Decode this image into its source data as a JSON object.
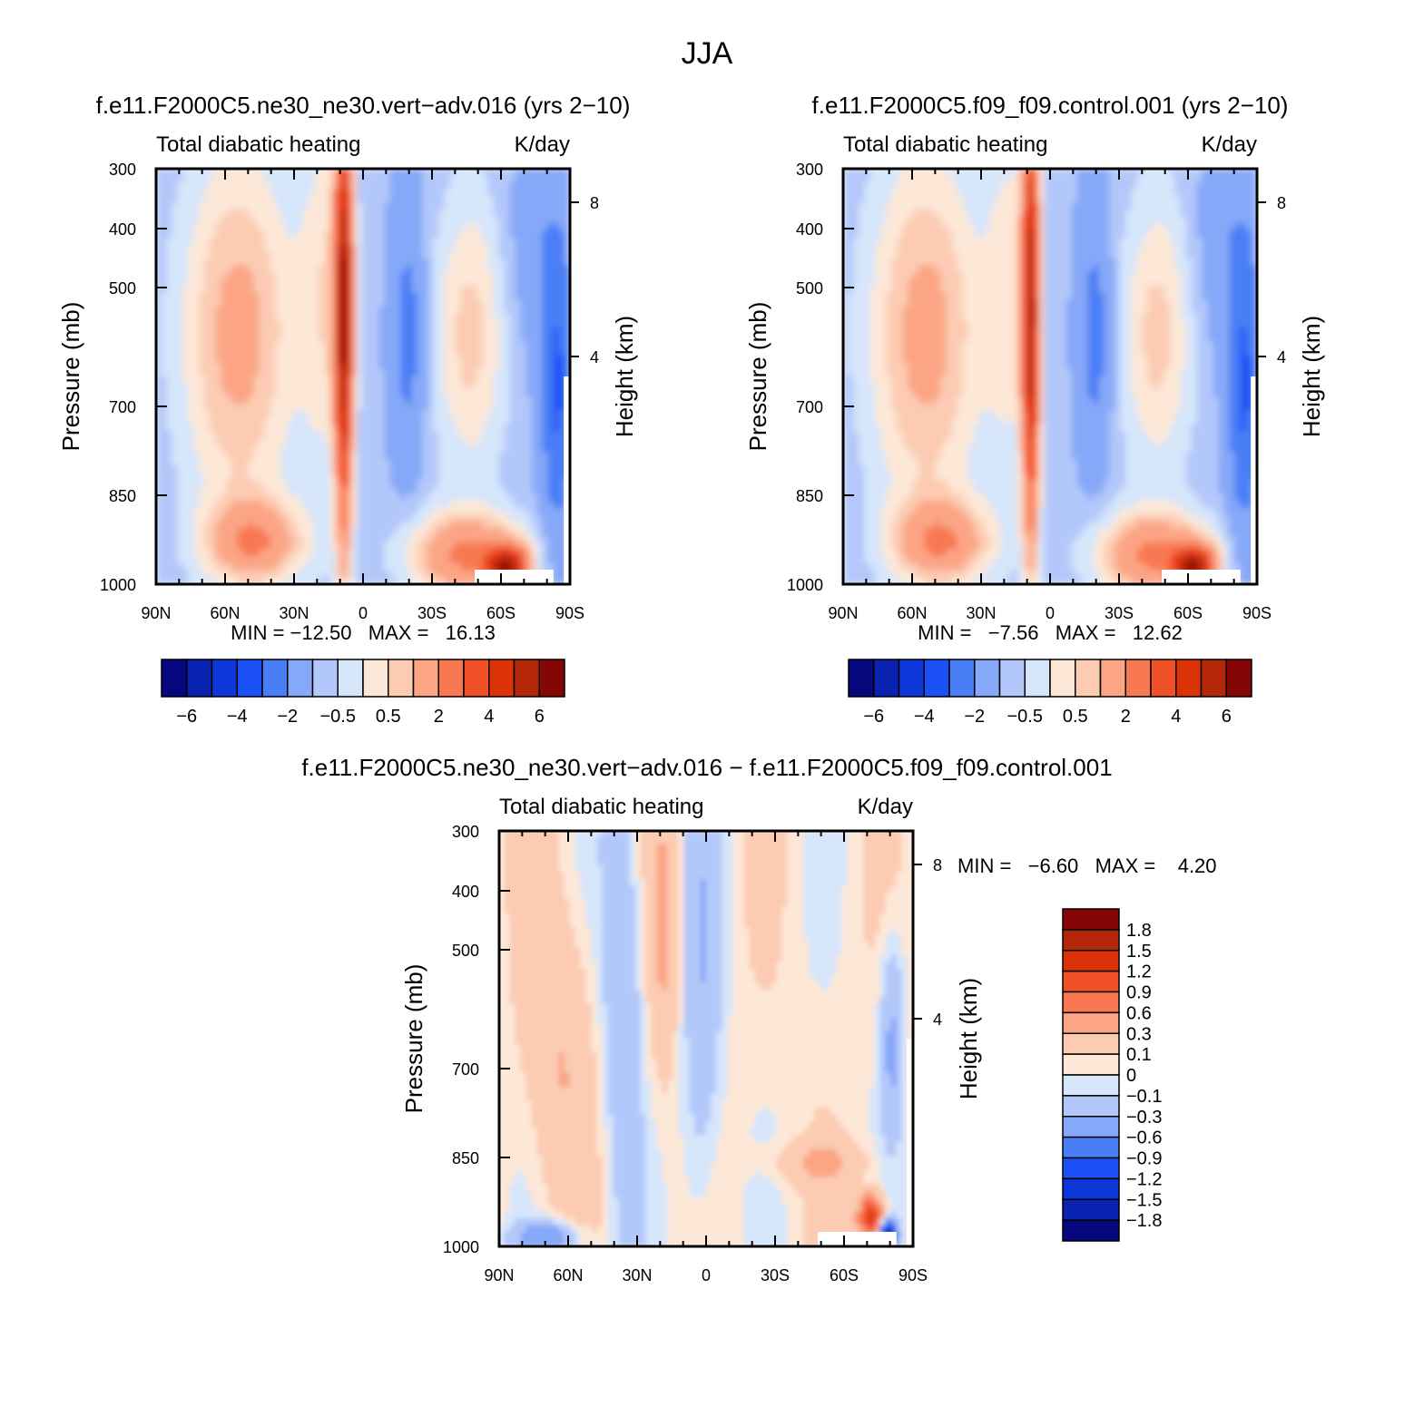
{
  "figure": {
    "title": "JJA"
  },
  "colors": {
    "main_scale": [
      "#08087e",
      "#0a22b0",
      "#0d37d9",
      "#1c51f5",
      "#4a7ef7",
      "#86a8f8",
      "#b3c8fa",
      "#d6e6fb",
      "#fde7d6",
      "#fccbb2",
      "#fba585",
      "#f87851",
      "#f05026",
      "#db3208",
      "#b32608",
      "#860505"
    ],
    "diff_scale": [
      "#08087e",
      "#0a22b0",
      "#0d37d9",
      "#1c51f5",
      "#4a7ef7",
      "#86a8f8",
      "#b3c8fa",
      "#d6e6fb",
      "#fde7d6",
      "#fccbb2",
      "#fba585",
      "#f87851",
      "#f05026",
      "#db3208",
      "#b32608",
      "#860505"
    ]
  },
  "chart_data": [
    {
      "type": "heatmap",
      "title": "f.e11.F2000C5.ne30_ne30.vert−adv.016 (yrs 2−10)",
      "subtitle_left": "Total diabatic heating",
      "subtitle_right": "K/day",
      "ylabel": "Pressure (mb)",
      "ylabel_right": "Height (km)",
      "x_ticks": [
        "90N",
        "60N",
        "30N",
        "0",
        "30S",
        "60S",
        "90S"
      ],
      "y_ticks": [
        "300",
        "400",
        "500",
        "700",
        "850",
        "1000"
      ],
      "y_right_ticks": [
        "8",
        "4"
      ],
      "stats": "MIN = −12.50   MAX =   16.13",
      "stats_min": -12.5,
      "stats_max": 16.13,
      "colorbar_labels": [
        "−6",
        "−4",
        "−2",
        "−0.5",
        "0.5",
        "2",
        "4",
        "6"
      ],
      "colorbar_levels": [
        -6,
        -5,
        -4,
        -3,
        -2,
        -1,
        -0.5,
        0,
        0.5,
        1,
        2,
        3,
        4,
        5,
        6
      ]
    },
    {
      "type": "heatmap",
      "title": "f.e11.F2000C5.f09_f09.control.001 (yrs 2−10)",
      "subtitle_left": "Total diabatic heating",
      "subtitle_right": "K/day",
      "ylabel": "Pressure (mb)",
      "ylabel_right": "Height (km)",
      "x_ticks": [
        "90N",
        "60N",
        "30N",
        "0",
        "30S",
        "60S",
        "90S"
      ],
      "y_ticks": [
        "300",
        "400",
        "500",
        "700",
        "850",
        "1000"
      ],
      "y_right_ticks": [
        "8",
        "4"
      ],
      "stats": "MIN =   −7.56   MAX =   12.62",
      "stats_min": -7.56,
      "stats_max": 12.62,
      "colorbar_labels": [
        "−6",
        "−4",
        "−2",
        "−0.5",
        "0.5",
        "2",
        "4",
        "6"
      ],
      "colorbar_levels": [
        -6,
        -5,
        -4,
        -3,
        -2,
        -1,
        -0.5,
        0,
        0.5,
        1,
        2,
        3,
        4,
        5,
        6
      ]
    },
    {
      "type": "heatmap",
      "title": "f.e11.F2000C5.ne30_ne30.vert−adv.016 − f.e11.F2000C5.f09_f09.control.001",
      "subtitle_left": "Total diabatic heating",
      "subtitle_right": "K/day",
      "ylabel": "Pressure (mb)",
      "ylabel_right": "Height (km)",
      "x_ticks": [
        "90N",
        "60N",
        "30N",
        "0",
        "30S",
        "60S",
        "90S"
      ],
      "y_ticks": [
        "300",
        "400",
        "500",
        "700",
        "850",
        "1000"
      ],
      "y_right_ticks": [
        "8",
        "4"
      ],
      "stats": "MIN =   −6.60   MAX =    4.20",
      "stats_min": -6.6,
      "stats_max": 4.2,
      "colorbar_labels": [
        "1.8",
        "1.5",
        "1.2",
        "0.9",
        "0.6",
        "0.3",
        "0.1",
        "0",
        "−0.1",
        "−0.3",
        "−0.6",
        "−0.9",
        "−1.2",
        "−1.5",
        "−1.8"
      ],
      "colorbar_levels": [
        1.8,
        1.5,
        1.2,
        0.9,
        0.6,
        0.3,
        0.1,
        0,
        -0.1,
        -0.3,
        -0.6,
        -0.9,
        -1.2,
        -1.5,
        -1.8
      ]
    }
  ]
}
